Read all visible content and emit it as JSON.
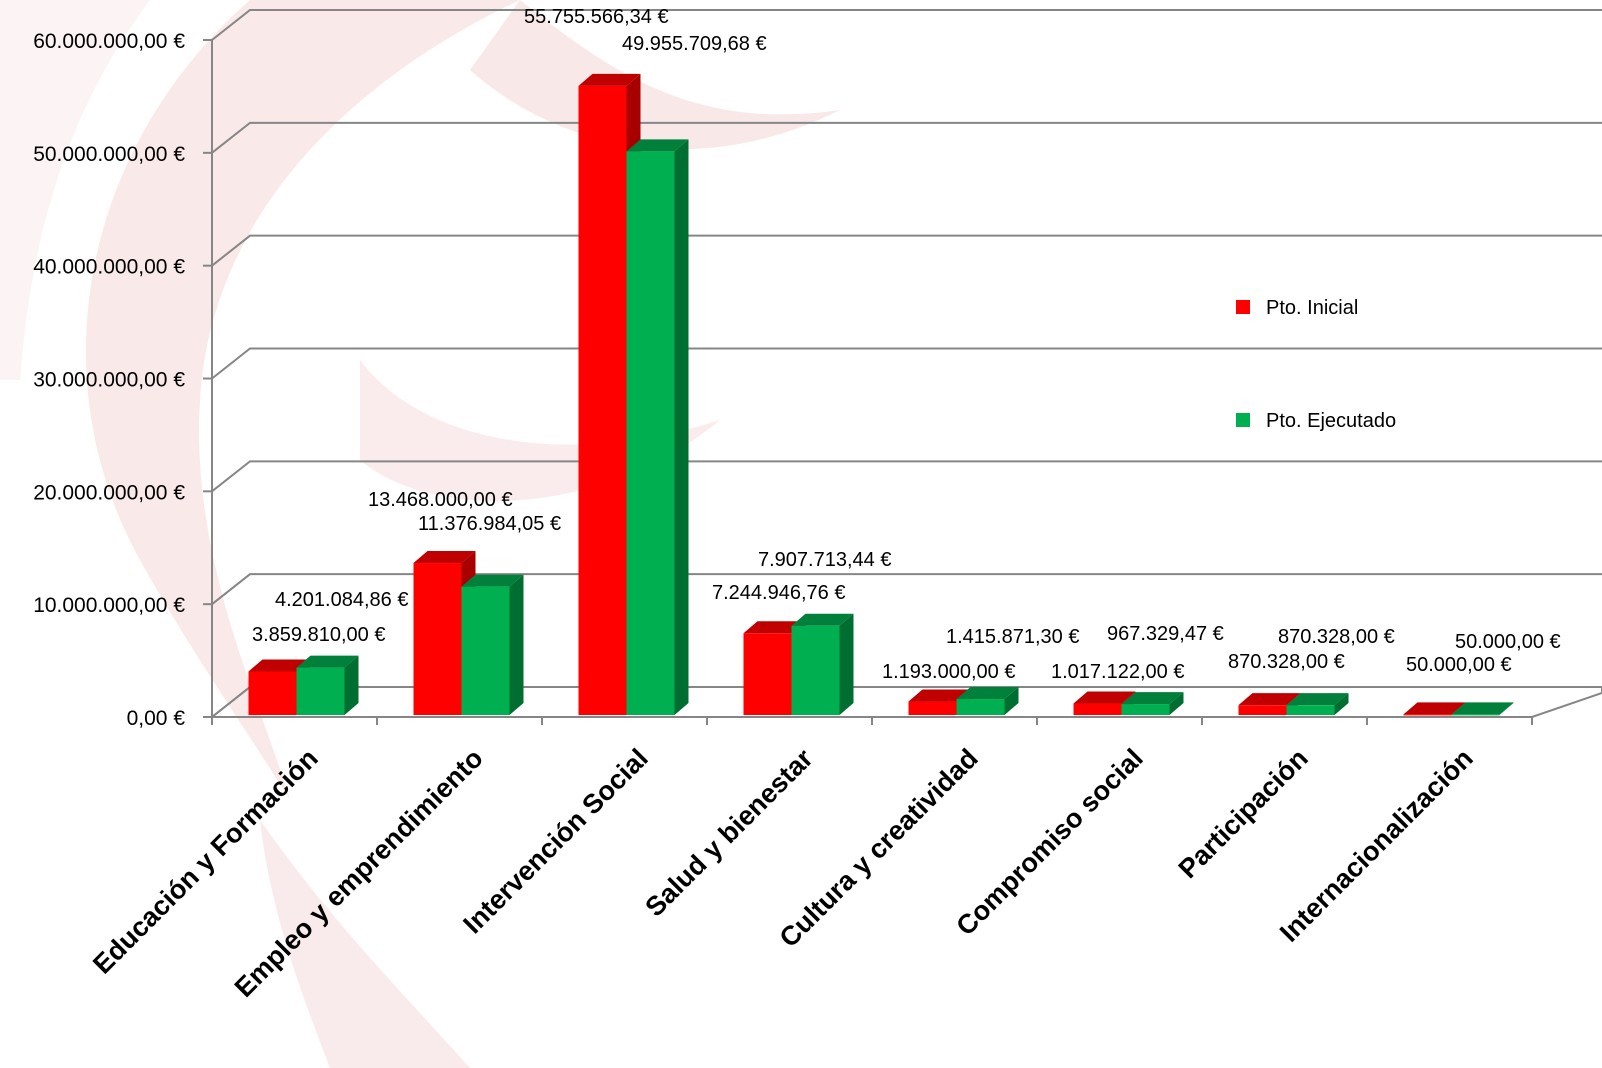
{
  "chart_data": {
    "type": "bar",
    "title": "",
    "xlabel": "",
    "ylabel": "",
    "ylim": [
      0,
      60000000
    ],
    "yticks": [
      0,
      10000000,
      20000000,
      30000000,
      40000000,
      50000000,
      60000000
    ],
    "ytick_labels": [
      "0,00 €",
      "10.000.000,00 €",
      "20.000.000,00 €",
      "30.000.000,00 €",
      "40.000.000,00 €",
      "50.000.000,00 €",
      "60.000.000,00 €"
    ],
    "grid": true,
    "legend_position": "right",
    "categories": [
      "Educación y Formación",
      "Empleo y emprendimiento",
      "Intervención Social",
      "Salud y bienestar",
      "Cultura y creatividad",
      "Compromiso social",
      "Participación",
      "Internacionalización"
    ],
    "series": [
      {
        "name": "Pto. Inicial",
        "color": "#ff0000",
        "values": [
          3859810.0,
          13468000.0,
          55755566.34,
          7244946.76,
          1193000.0,
          1017122.0,
          870328.0,
          50000.0
        ],
        "labels": [
          "3.859.810,00 €",
          "13.468.000,00 €",
          "55.755.566,34 €",
          "7.244.946,76 €",
          "1.193.000,00 €",
          "1.017.122,00 €",
          "870.328,00 €",
          "50.000,00 €"
        ]
      },
      {
        "name": "Pto. Ejecutado",
        "color": "#00b050",
        "values": [
          4201084.86,
          11376984.05,
          49955709.68,
          7907713.44,
          1415871.3,
          967329.47,
          870328.0,
          50000.0
        ],
        "labels": [
          "4.201.084,86 €",
          "11.376.984,05 €",
          "49.955.709,68 €",
          "7.907.713,44 €",
          "1.415.871,30 €",
          "967.329,47 €",
          "870.328,00 €",
          "50.000,00 €"
        ]
      }
    ]
  }
}
